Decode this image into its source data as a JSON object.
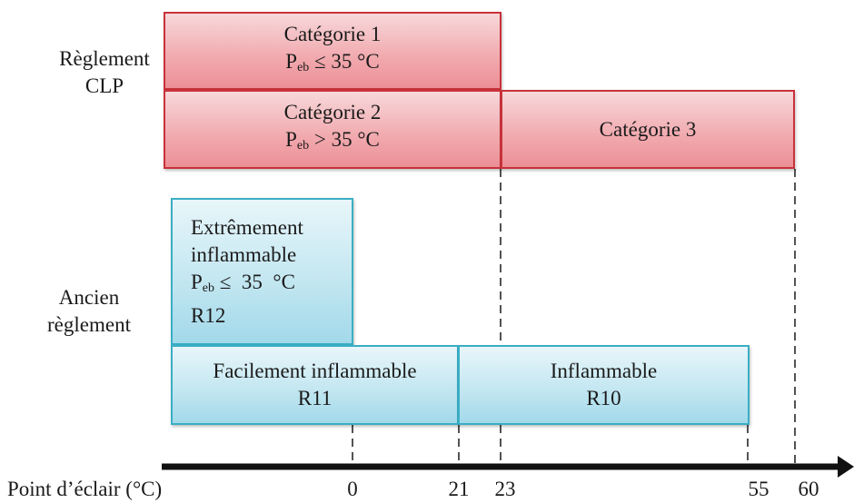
{
  "clp": {
    "label_line1": "Règlement",
    "label_line2": "CLP",
    "cat1": {
      "title": "Catégorie 1",
      "cond_prefix": "P",
      "cond_sub": "eb",
      "cond_rel": " ≤ 35 °C"
    },
    "cat2": {
      "title": "Catégorie 2",
      "cond_prefix": "P",
      "cond_sub": "eb",
      "cond_rel": " > 35 °C"
    },
    "cat3": {
      "title": "Catégorie 3"
    }
  },
  "ancien": {
    "label_line1": "Ancien",
    "label_line2": "règlement",
    "extreme": {
      "line1": "Extrêmement",
      "line2": "inflammable",
      "cond_prefix": "P",
      "cond_sub": "eb",
      "cond_rel": " ≤  35  °C",
      "code": "R12"
    },
    "facile": {
      "line1": "Facilement inflammable",
      "line2": "R11"
    },
    "inflammable": {
      "line1": "Inflammable",
      "line2": "R10"
    }
  },
  "axis": {
    "label": "Point d’éclair (°C)",
    "ticks": [
      "0",
      "21",
      "23",
      "55",
      "60"
    ]
  },
  "colors": {
    "clp_fill": "#f1a9ae",
    "clp_border": "#c8323a",
    "ancien_fill": "#c4e7f1",
    "ancien_border": "#3aaec4"
  }
}
